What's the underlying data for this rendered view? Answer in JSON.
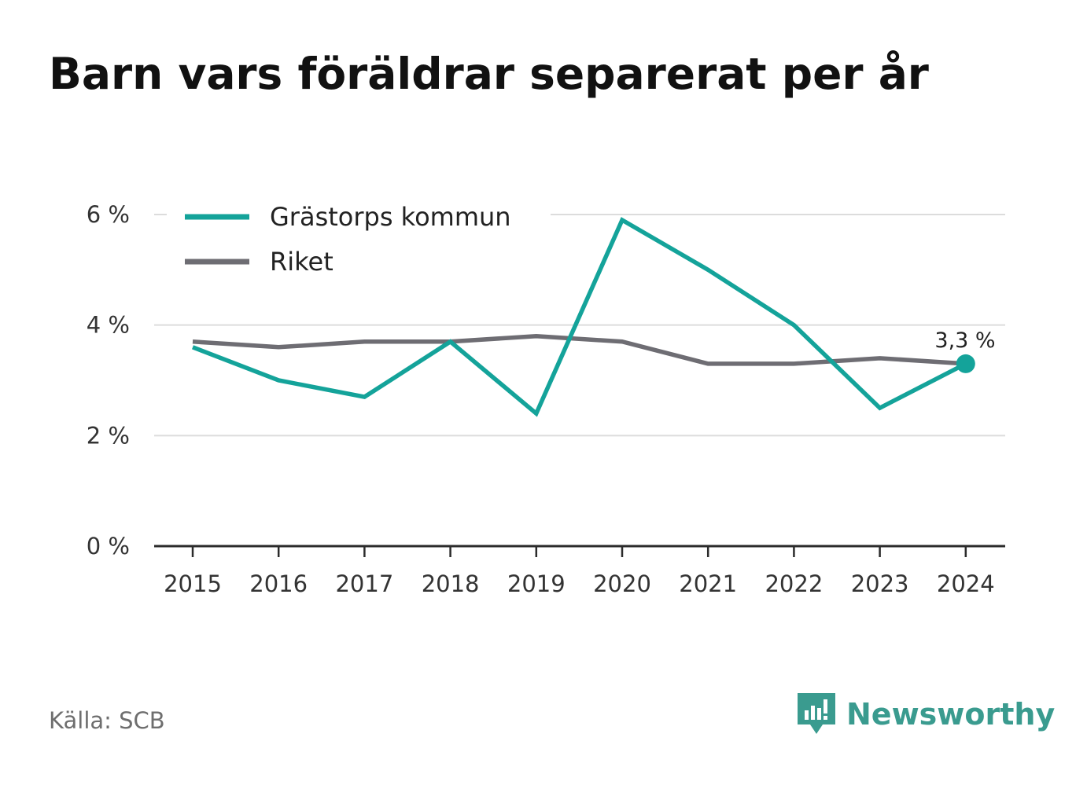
{
  "title": "Barn vars föräldrar separerat per år",
  "source": "Källa: SCB",
  "brand": {
    "name": "Newsworthy",
    "icon": "newsworthy-logo-icon",
    "color": "#3a9b8f"
  },
  "chart_data": {
    "type": "line",
    "x": [
      "2015",
      "2016",
      "2017",
      "2018",
      "2019",
      "2020",
      "2021",
      "2022",
      "2023",
      "2024"
    ],
    "y_ticks": [
      "0 %",
      "2 %",
      "4 %",
      "6 %"
    ],
    "y_tick_values": [
      0,
      2,
      4,
      6
    ],
    "ylim": [
      0,
      6
    ],
    "grid": true,
    "legend": "top-left",
    "series": [
      {
        "name": "Grästorps kommun",
        "color": "#14a39a",
        "values": [
          3.6,
          3.0,
          2.7,
          3.7,
          2.4,
          5.9,
          5.0,
          4.0,
          2.5,
          3.3
        ]
      },
      {
        "name": "Riket",
        "color": "#6e6d73",
        "values": [
          3.7,
          3.6,
          3.7,
          3.7,
          3.8,
          3.7,
          3.3,
          3.3,
          3.4,
          3.3
        ]
      }
    ],
    "annotation": {
      "text": "3,3 %",
      "series": "Grästorps kommun",
      "x": "2024",
      "value": 3.3
    }
  }
}
